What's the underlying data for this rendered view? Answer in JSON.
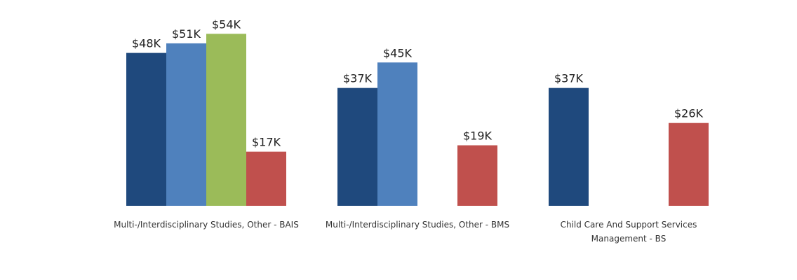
{
  "chart_data": {
    "type": "bar",
    "categories": [
      [
        "Multi-/Interdisciplinary Studies, Other - BAIS"
      ],
      [
        "Multi-/Interdisciplinary Studies, Other - BMS"
      ],
      [
        "Child Care And Support Services",
        "Management - BS"
      ]
    ],
    "series": [
      {
        "color": "#1F497D",
        "values": [
          48,
          37,
          37
        ],
        "labels": [
          "$48K",
          "$37K",
          "$37K"
        ]
      },
      {
        "color": "#4F81BD",
        "values": [
          51,
          45,
          null
        ],
        "labels": [
          "$51K",
          "$45K",
          ""
        ]
      },
      {
        "color": "#9BBB59",
        "values": [
          54,
          null,
          null
        ],
        "labels": [
          "$54K",
          "",
          ""
        ]
      },
      {
        "color": "#C0504D",
        "values": [
          17,
          19,
          26
        ],
        "labels": [
          "$17K",
          "$19K",
          "$26K"
        ]
      }
    ],
    "ylim": [
      0,
      54
    ],
    "grid": false,
    "legend": "none"
  }
}
